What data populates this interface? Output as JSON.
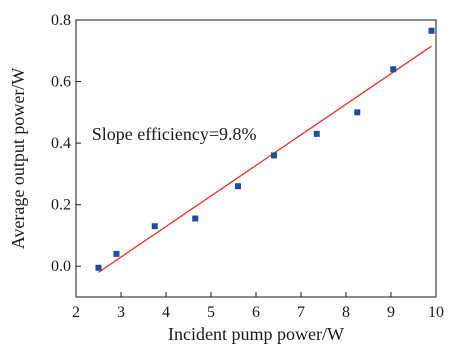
{
  "chart_data": {
    "type": "scatter",
    "title": "",
    "xlabel": "Incident pump power/W",
    "ylabel": "Average output power/W",
    "xlim": [
      2,
      10
    ],
    "ylim": [
      -0.1,
      0.8
    ],
    "xticks": [
      2,
      3,
      4,
      5,
      6,
      7,
      8,
      9,
      10
    ],
    "yticks": [
      0.0,
      0.2,
      0.4,
      0.6,
      0.8
    ],
    "ytick_labels": [
      "0.0",
      "0.2",
      "0.4",
      "0.6",
      "0.8"
    ],
    "grid": false,
    "legend": "none",
    "series": [
      {
        "kind": "scatter",
        "marker": "square",
        "color": "#1f4e9e",
        "x": [
          2.5,
          2.9,
          3.75,
          4.65,
          5.6,
          6.4,
          7.35,
          8.25,
          9.05,
          9.9
        ],
        "y": [
          -0.005,
          0.04,
          0.13,
          0.155,
          0.26,
          0.36,
          0.43,
          0.5,
          0.64,
          0.765
        ]
      },
      {
        "kind": "fit-line",
        "color": "#e8302a",
        "x": [
          2.5,
          9.9
        ],
        "y": [
          -0.02,
          0.715
        ]
      }
    ],
    "annotations": [
      {
        "text": "Slope efficiency=9.8%",
        "x": 2.35,
        "y": 0.41
      }
    ]
  }
}
